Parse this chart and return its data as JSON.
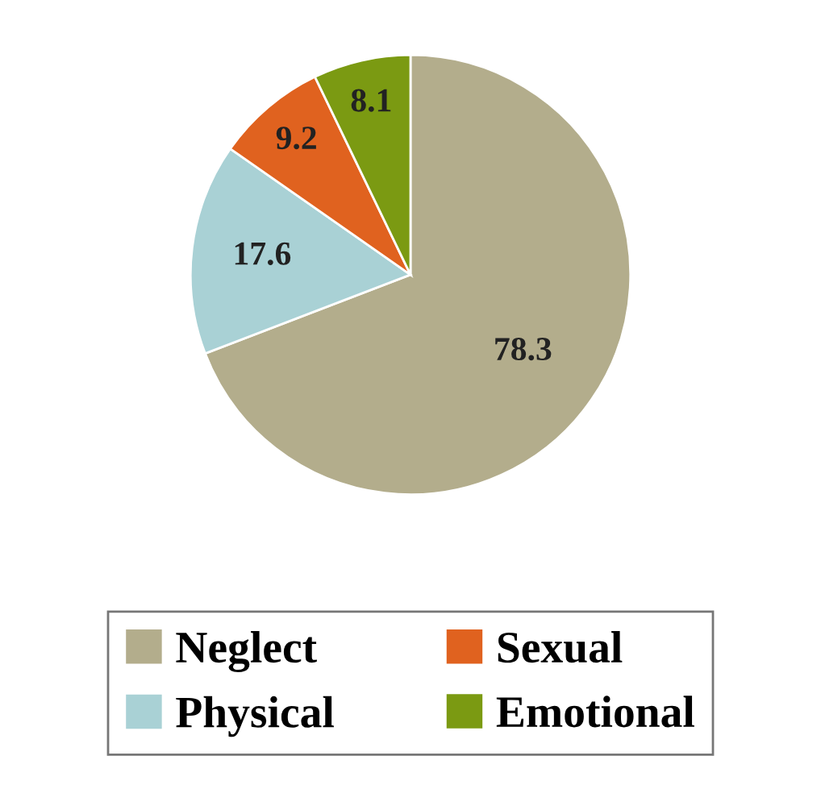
{
  "chart_data": {
    "type": "pie",
    "categories": [
      "Neglect",
      "Physical",
      "Sexual",
      "Emotional"
    ],
    "values": [
      78.3,
      17.6,
      9.2,
      8.1
    ],
    "colors": [
      "#b3ad8c",
      "#a9d1d5",
      "#e0621f",
      "#7b9a12"
    ],
    "data_labels": true,
    "legend": "bottom"
  }
}
